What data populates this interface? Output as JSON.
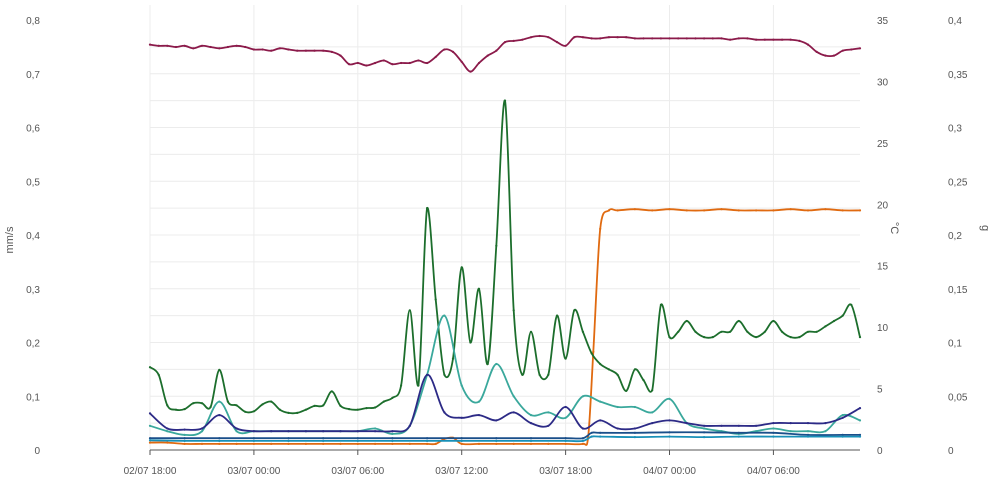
{
  "chart_data": {
    "type": "line",
    "title": "",
    "grid": true,
    "legend": "none",
    "x_axis": {
      "range": [
        "02/07 18:00",
        "04/07 11:00"
      ],
      "ticks": [
        "02/07 18:00",
        "03/07 00:00",
        "03/07 06:00",
        "03/07 12:00",
        "03/07 18:00",
        "04/07 00:00",
        "04/07 06:00"
      ]
    },
    "y_axes": [
      {
        "id": "mms",
        "position": "left",
        "label": "mm/s",
        "range": [
          0,
          0.8
        ],
        "ticks": [
          "0",
          "0,1",
          "0,2",
          "0,3",
          "0,4",
          "0,5",
          "0,6",
          "0,7",
          "0,8"
        ]
      },
      {
        "id": "temp",
        "position": "right",
        "label": "°C",
        "range": [
          0,
          35
        ],
        "ticks": [
          "0",
          "5",
          "10",
          "15",
          "20",
          "25",
          "30",
          "35"
        ]
      },
      {
        "id": "g",
        "position": "right-outer",
        "label": "g",
        "range": [
          0,
          0.4
        ],
        "ticks": [
          "0",
          "0,05",
          "0,1",
          "0,15",
          "0,2",
          "0,25",
          "0,3",
          "0,35",
          "0,4"
        ]
      }
    ],
    "series": [
      {
        "axis": "temp",
        "color": "#8b1a4a",
        "x": [
          0,
          0.5,
          1,
          1.5,
          2,
          2.5,
          3,
          3.5,
          4,
          4.5,
          5,
          5.5,
          6,
          6.5,
          7,
          7.5,
          8,
          8.5,
          9,
          9.5,
          10,
          10.5,
          11,
          11.5,
          12,
          12.5,
          13,
          13.5,
          14,
          14.5,
          15,
          15.5,
          16,
          16.5,
          17,
          17.5,
          18,
          18.5,
          19,
          19.5,
          20,
          20.5,
          21,
          21.5,
          22,
          22.5,
          23,
          23.5,
          24,
          24.5,
          25,
          25.5,
          26,
          26.5,
          27,
          27.5,
          28,
          28.5,
          29,
          29.5,
          30,
          30.5,
          31,
          31.5,
          32,
          32.5,
          33,
          33.5,
          34,
          34.5,
          35,
          35.5,
          36,
          36.5,
          37,
          37.5,
          38,
          38.5,
          39,
          39.5,
          40,
          40.5,
          41
        ],
        "y": [
          33.0,
          32.9,
          32.9,
          32.8,
          32.9,
          32.7,
          32.9,
          32.8,
          32.7,
          32.8,
          32.9,
          32.8,
          32.6,
          32.6,
          32.5,
          32.7,
          32.6,
          32.5,
          32.5,
          32.5,
          32.5,
          32.4,
          32.1,
          31.4,
          31.5,
          31.3,
          31.5,
          31.7,
          31.4,
          31.5,
          31.5,
          31.7,
          31.5,
          32.0,
          32.6,
          32.4,
          31.6,
          30.8,
          31.5,
          32.1,
          32.5,
          33.2,
          33.3,
          33.4,
          33.6,
          33.7,
          33.6,
          33.2,
          32.9,
          33.6,
          33.6,
          33.5,
          33.5,
          33.6,
          33.6,
          33.6,
          33.5,
          33.5,
          33.5,
          33.5,
          33.5,
          33.5,
          33.5,
          33.5,
          33.5,
          33.5,
          33.5,
          33.4,
          33.5,
          33.5,
          33.4,
          33.4,
          33.4,
          33.4,
          33.4,
          33.3,
          33.0,
          32.4,
          32.1,
          32.1,
          32.5,
          32.6,
          32.7
        ]
      },
      {
        "axis": "temp",
        "color": "#e06a10",
        "x": [
          0,
          1,
          2,
          3,
          4,
          5,
          6,
          7,
          8,
          9,
          10,
          11,
          12,
          13,
          14,
          15,
          16,
          16.5,
          17,
          17.5,
          18,
          19,
          20,
          21,
          22,
          23,
          24,
          25,
          25.3,
          25.6,
          26,
          26.5,
          27,
          28,
          29,
          30,
          31,
          32,
          33,
          34,
          35,
          36,
          37,
          38,
          39,
          40,
          41
        ],
        "y": [
          0.6,
          0.6,
          0.5,
          0.5,
          0.5,
          0.5,
          0.5,
          0.5,
          0.5,
          0.5,
          0.5,
          0.5,
          0.5,
          0.5,
          0.5,
          0.5,
          0.5,
          0.5,
          0.9,
          1.0,
          0.5,
          0.5,
          0.5,
          0.5,
          0.5,
          0.5,
          0.5,
          0.5,
          1.0,
          8.0,
          18.0,
          19.5,
          19.5,
          19.6,
          19.5,
          19.6,
          19.5,
          19.5,
          19.6,
          19.5,
          19.5,
          19.5,
          19.6,
          19.5,
          19.6,
          19.5,
          19.5
        ]
      },
      {
        "axis": "mms",
        "color": "#1c6e2c",
        "x": [
          0,
          0.5,
          1,
          1.5,
          2,
          2.5,
          3,
          3.5,
          4,
          4.5,
          5,
          5.5,
          6,
          6.5,
          7,
          7.5,
          8,
          8.5,
          9,
          9.5,
          10,
          10.5,
          11,
          11.5,
          12,
          12.5,
          13,
          13.5,
          14,
          14.5,
          15,
          15.5,
          16,
          16.5,
          17,
          17.5,
          18,
          18.5,
          19,
          19.5,
          20,
          20.5,
          21,
          21.5,
          22,
          22.5,
          23,
          23.5,
          24,
          24.5,
          25,
          25.5,
          26,
          26.5,
          27,
          27.5,
          28,
          28.5,
          29,
          29.5,
          30,
          30.5,
          31,
          31.5,
          32,
          32.5,
          33,
          33.5,
          34,
          34.5,
          35,
          35.5,
          36,
          36.5,
          37,
          37.5,
          38,
          38.5,
          39,
          39.5,
          40,
          40.5,
          41
        ],
        "y": [
          0.154,
          0.14,
          0.083,
          0.075,
          0.076,
          0.087,
          0.087,
          0.08,
          0.149,
          0.09,
          0.083,
          0.071,
          0.072,
          0.085,
          0.09,
          0.075,
          0.069,
          0.069,
          0.075,
          0.082,
          0.083,
          0.109,
          0.082,
          0.076,
          0.075,
          0.078,
          0.079,
          0.09,
          0.097,
          0.12,
          0.26,
          0.12,
          0.45,
          0.28,
          0.14,
          0.17,
          0.34,
          0.2,
          0.3,
          0.16,
          0.38,
          0.65,
          0.26,
          0.14,
          0.22,
          0.14,
          0.14,
          0.25,
          0.17,
          0.26,
          0.22,
          0.18,
          0.16,
          0.15,
          0.14,
          0.11,
          0.15,
          0.13,
          0.111,
          0.27,
          0.21,
          0.22,
          0.24,
          0.22,
          0.21,
          0.21,
          0.22,
          0.22,
          0.24,
          0.22,
          0.21,
          0.22,
          0.24,
          0.22,
          0.21,
          0.21,
          0.22,
          0.22,
          0.23,
          0.24,
          0.25,
          0.27,
          0.21
        ]
      },
      {
        "axis": "mms",
        "color": "#3aa89c",
        "x": [
          0,
          1,
          2,
          3,
          4,
          5,
          6,
          7,
          8,
          9,
          10,
          11,
          12,
          13,
          14,
          15,
          16,
          17,
          18,
          19,
          20,
          21,
          22,
          23,
          24,
          25,
          26,
          27,
          28,
          29,
          30,
          31,
          32,
          33,
          34,
          35,
          36,
          37,
          38,
          39,
          40,
          41
        ],
        "y": [
          0.045,
          0.035,
          0.028,
          0.035,
          0.09,
          0.035,
          0.035,
          0.035,
          0.035,
          0.035,
          0.035,
          0.035,
          0.035,
          0.04,
          0.03,
          0.045,
          0.14,
          0.25,
          0.12,
          0.09,
          0.16,
          0.1,
          0.065,
          0.07,
          0.06,
          0.1,
          0.09,
          0.08,
          0.08,
          0.07,
          0.095,
          0.05,
          0.04,
          0.035,
          0.03,
          0.035,
          0.04,
          0.035,
          0.035,
          0.035,
          0.065,
          0.055
        ]
      },
      {
        "axis": "mms",
        "color": "#2c2a86",
        "x": [
          0,
          1,
          2,
          3,
          4,
          5,
          6,
          7,
          8,
          9,
          10,
          11,
          12,
          13,
          14,
          15,
          16,
          17,
          18,
          19,
          20,
          21,
          22,
          23,
          24,
          25,
          26,
          27,
          28,
          29,
          30,
          31,
          32,
          33,
          34,
          35,
          36,
          37,
          38,
          39,
          40,
          41
        ],
        "y": [
          0.068,
          0.04,
          0.038,
          0.04,
          0.065,
          0.04,
          0.035,
          0.035,
          0.035,
          0.035,
          0.035,
          0.035,
          0.035,
          0.035,
          0.035,
          0.045,
          0.14,
          0.07,
          0.06,
          0.065,
          0.055,
          0.07,
          0.05,
          0.045,
          0.08,
          0.04,
          0.055,
          0.04,
          0.04,
          0.05,
          0.055,
          0.05,
          0.045,
          0.045,
          0.045,
          0.045,
          0.05,
          0.05,
          0.05,
          0.05,
          0.06,
          0.078
        ]
      },
      {
        "axis": "mms",
        "color": "#1a4f8a",
        "x": [
          0,
          2,
          4,
          6,
          8,
          10,
          12,
          14,
          16,
          18,
          20,
          22,
          24,
          25,
          25.5,
          26,
          28,
          30,
          32,
          34,
          36,
          38,
          40,
          41
        ],
        "y": [
          0.022,
          0.022,
          0.022,
          0.022,
          0.022,
          0.022,
          0.022,
          0.022,
          0.022,
          0.022,
          0.022,
          0.022,
          0.022,
          0.022,
          0.032,
          0.032,
          0.032,
          0.033,
          0.033,
          0.032,
          0.032,
          0.028,
          0.028,
          0.028
        ]
      },
      {
        "axis": "mms",
        "color": "#1890b8",
        "x": [
          0,
          2,
          4,
          6,
          8,
          10,
          12,
          14,
          16,
          18,
          20,
          22,
          24,
          25,
          25.5,
          26,
          28,
          30,
          32,
          34,
          36,
          38,
          40,
          41
        ],
        "y": [
          0.018,
          0.017,
          0.017,
          0.017,
          0.017,
          0.017,
          0.017,
          0.017,
          0.017,
          0.017,
          0.017,
          0.017,
          0.017,
          0.017,
          0.025,
          0.025,
          0.024,
          0.025,
          0.024,
          0.025,
          0.025,
          0.025,
          0.025,
          0.025
        ]
      }
    ]
  }
}
